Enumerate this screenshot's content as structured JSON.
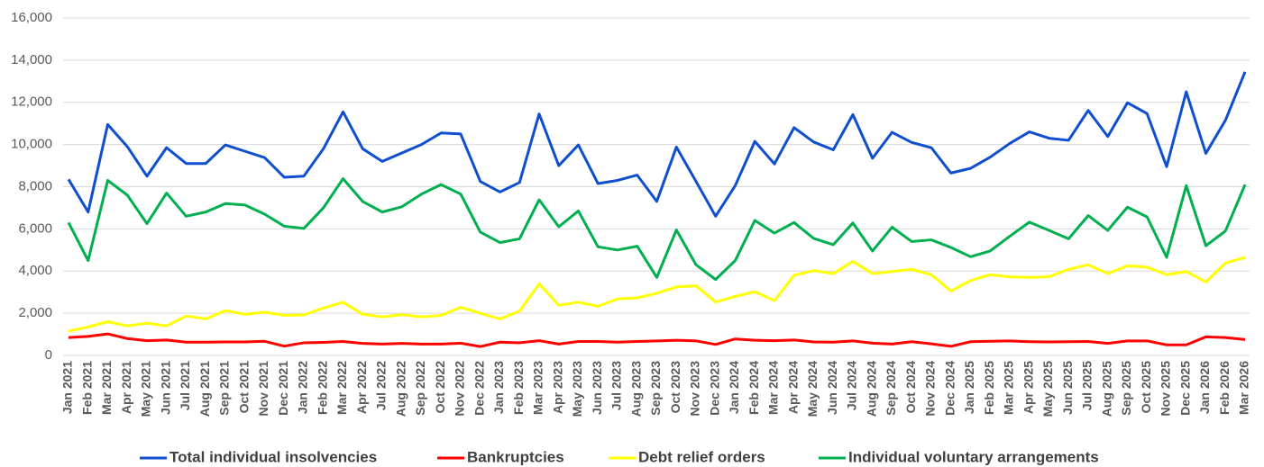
{
  "chart_data": {
    "type": "line",
    "categories": [
      "Jan 2021",
      "Feb 2021",
      "Mar 2021",
      "Apr 2021",
      "May 2021",
      "Jun 2021",
      "Jul 2021",
      "Aug 2021",
      "Sep 2021",
      "Oct 2021",
      "Nov 2021",
      "Dec 2021",
      "Jan 2022",
      "Feb 2022",
      "Mar 2022",
      "Apr 2022",
      "Jul 2022",
      "Aug 2022",
      "Sep 2022",
      "Oct 2022",
      "Nov 2022",
      "Dec 2022",
      "Jan 2023",
      "Feb 2023",
      "Mar 2023",
      "Apr 2023",
      "May 2023",
      "Jun 2023",
      "Jul 2023",
      "Aug 2023",
      "Sep 2023",
      "Oct 2023",
      "Nov 2023",
      "Dec 2023",
      "Jan 2024",
      "Feb 2024",
      "Mar 2024",
      "Apr 2024",
      "May 2024",
      "Jun 2024",
      "Jul 2024",
      "Aug 2024",
      "Sep 2024",
      "Oct 2024",
      "Nov 2024",
      "Dec 2024",
      "Jan 2025",
      "Feb 2025",
      "Mar 2025",
      "Apr 2025",
      "May 2025",
      "Jun 2025",
      "Jul 2025",
      "Aug 2025",
      "Sep 2025",
      "Oct 2025",
      "Nov 2025",
      "Dec 2025",
      "Jan 2026",
      "Feb 2026",
      "Mar 2026"
    ],
    "series": [
      {
        "name": "Total individual insolvencies",
        "color": "#0f4fcf",
        "values": [
          8350,
          6800,
          10950,
          9900,
          8500,
          9850,
          9100,
          9100,
          9980,
          9680,
          9380,
          8450,
          8500,
          9800,
          11550,
          9800,
          9200,
          9600,
          10000,
          10550,
          10500,
          8250,
          7750,
          8200,
          11450,
          9000,
          9980,
          8150,
          8300,
          8550,
          7300,
          9880,
          8250,
          6600,
          8050,
          10150,
          9080,
          10800,
          10120,
          9750,
          11420,
          9350,
          10580,
          10100,
          9850,
          8650,
          8870,
          9400,
          10050,
          10600,
          10300,
          10200,
          11620,
          10380,
          11980,
          11470,
          8950,
          12500,
          9580,
          11150,
          13450
        ]
      },
      {
        "name": "Bankruptcies",
        "color": "#ff0000",
        "values": [
          850,
          900,
          1020,
          800,
          700,
          730,
          630,
          630,
          640,
          640,
          670,
          440,
          600,
          620,
          660,
          570,
          540,
          570,
          540,
          540,
          580,
          420,
          630,
          600,
          700,
          540,
          660,
          660,
          630,
          660,
          690,
          720,
          690,
          520,
          780,
          720,
          700,
          730,
          640,
          630,
          690,
          580,
          540,
          650,
          550,
          430,
          650,
          670,
          690,
          650,
          640,
          650,
          660,
          570,
          690,
          690,
          500,
          500,
          880,
          850,
          750
        ]
      },
      {
        "name": "Debt relief orders",
        "color": "#ffff00",
        "values": [
          1150,
          1350,
          1600,
          1400,
          1530,
          1400,
          1870,
          1730,
          2130,
          1950,
          2050,
          1900,
          1920,
          2250,
          2520,
          1950,
          1830,
          1930,
          1830,
          1900,
          2280,
          2000,
          1730,
          2100,
          3400,
          2380,
          2520,
          2330,
          2680,
          2730,
          2950,
          3250,
          3300,
          2530,
          2800,
          3020,
          2600,
          3800,
          4020,
          3880,
          4460,
          3880,
          3980,
          4080,
          3830,
          3050,
          3550,
          3830,
          3720,
          3700,
          3730,
          4080,
          4300,
          3880,
          4250,
          4180,
          3830,
          3980,
          3480,
          4380,
          4650
        ]
      },
      {
        "name": "Individual voluntary arrangements",
        "color": "#00b050",
        "values": [
          6300,
          4500,
          8300,
          7600,
          6250,
          7700,
          6600,
          6800,
          7200,
          7130,
          6700,
          6130,
          6020,
          7000,
          8380,
          7300,
          6800,
          7050,
          7650,
          8100,
          7650,
          5850,
          5350,
          5530,
          7380,
          6100,
          6850,
          5150,
          5000,
          5180,
          3700,
          5950,
          4300,
          3600,
          4500,
          6400,
          5800,
          6300,
          5550,
          5250,
          6280,
          4950,
          6080,
          5400,
          5480,
          5120,
          4680,
          4950,
          5650,
          6320,
          5930,
          5530,
          6630,
          5930,
          7030,
          6570,
          4650,
          8050,
          5200,
          5900,
          8100
        ]
      }
    ],
    "ylim": [
      0,
      16000
    ],
    "yticks": [
      0,
      {
        "value": 2000,
        "label": "2,000"
      },
      {
        "value": 4000,
        "label": "4,000"
      },
      {
        "value": 6000,
        "label": "6,000"
      },
      {
        "value": 8000,
        "label": "8,000"
      },
      {
        "value": 10000,
        "label": "10,000"
      },
      {
        "value": 12000,
        "label": "12,000"
      },
      {
        "value": 14000,
        "label": "14,000"
      },
      {
        "value": 16000,
        "label": "16,000"
      }
    ],
    "grid": true,
    "legend": "bottom"
  }
}
